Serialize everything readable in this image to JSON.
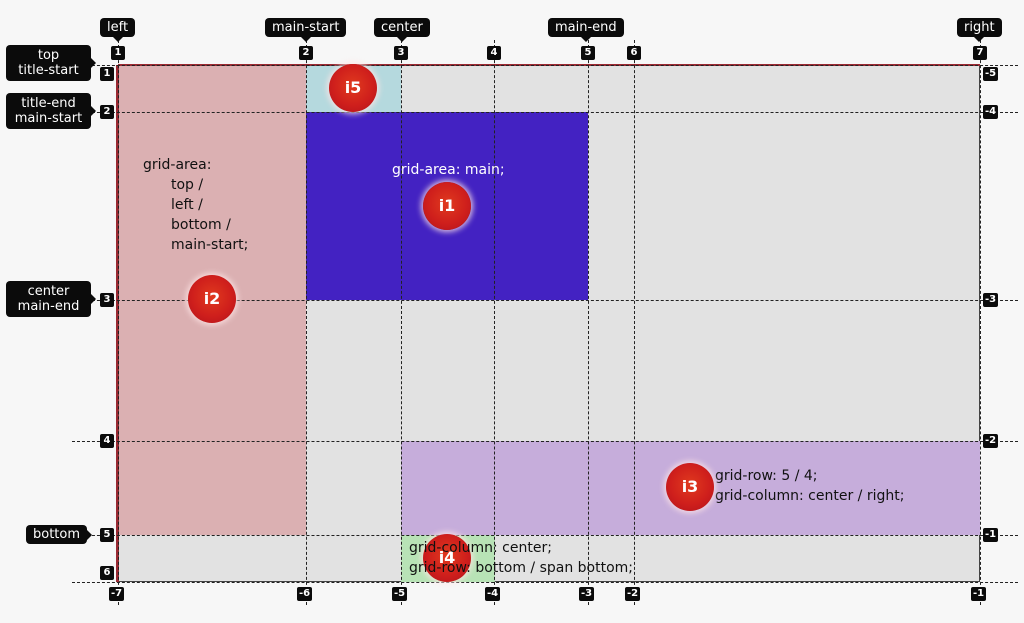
{
  "column_names": {
    "left": "left",
    "main_start": "main-start",
    "center": "center",
    "main_end": "main-end",
    "right": "right"
  },
  "row_names": {
    "top_title_start": [
      "top",
      "title-start"
    ],
    "title_end_main_start": [
      "title-end",
      "main-start"
    ],
    "center_main_end": [
      "center",
      "main-end"
    ],
    "bottom": "bottom"
  },
  "column_numbers": {
    "positive": [
      "1",
      "2",
      "3",
      "4",
      "5",
      "6",
      "7"
    ],
    "negative": [
      "-7",
      "-6",
      "-5",
      "-4",
      "-3",
      "-2",
      "-1"
    ]
  },
  "row_numbers": {
    "positive": [
      "1",
      "2",
      "3",
      "4",
      "5",
      "6"
    ],
    "negative": [
      "-5",
      "-4",
      "-3",
      "-2",
      "-1"
    ]
  },
  "items": {
    "i1": {
      "name": "i1",
      "color": "#4322c2",
      "text": "grid-area: main;"
    },
    "i2": {
      "name": "i2",
      "color": "#dbb0b2",
      "lines": [
        "grid-area:",
        "top /",
        "left /",
        "bottom /",
        "main-start;"
      ]
    },
    "i3": {
      "name": "i3",
      "color": "#c6addb",
      "lines": [
        "grid-row: 5 / 4;",
        "grid-column: center / right;"
      ]
    },
    "i4": {
      "name": "i4",
      "color": "#b8e3b6",
      "lines": [
        "grid-column: center;",
        "grid-row: bottom / span bottom;"
      ]
    },
    "i5": {
      "name": "i5",
      "color": "#b5d9de"
    }
  }
}
